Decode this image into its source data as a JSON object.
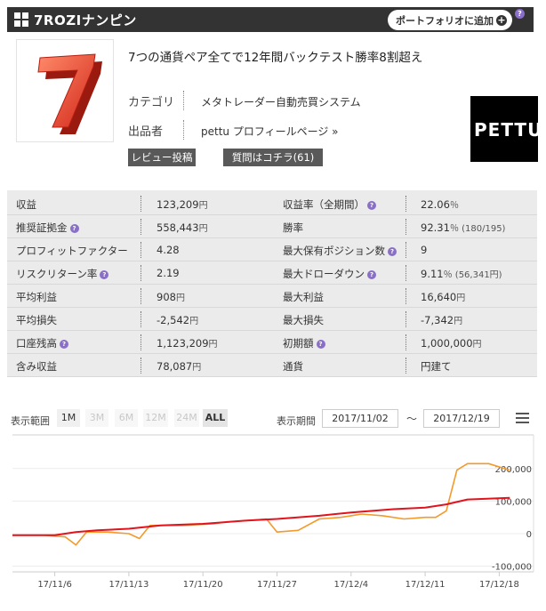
{
  "header": {
    "title": "7ROZIナンピン",
    "portfolio_button": "ポートフォリオに追加",
    "help": "?"
  },
  "product": {
    "logo_text": "7",
    "title": "7つの通貨ペア全てで12年間バックテスト勝率8割超え",
    "category_label": "カテゴリ",
    "category_value": "メタトレーダー自動売買システム",
    "seller_label": "出品者",
    "seller_value": "pettu プロフィールページ »",
    "review_button": "レビュー投稿",
    "question_button": "質問はコチラ(61)",
    "seller_logo_text": "PETTU"
  },
  "stats": [
    {
      "label1": "収益",
      "help1": false,
      "value1": "123,209",
      "unit1": "円",
      "label2": "収益率（全期間）",
      "help2": true,
      "value2": "22.06",
      "unit2": "％"
    },
    {
      "label1": "推奨証拠金",
      "help1": true,
      "value1": "558,443",
      "unit1": "円",
      "label2": "勝率",
      "help2": false,
      "value2": "92.31",
      "unit2": "％ (180/195)"
    },
    {
      "label1": "プロフィットファクター",
      "help1": false,
      "value1": "4.28",
      "unit1": "",
      "label2": "最大保有ポジション数",
      "help2": true,
      "value2": "9",
      "unit2": ""
    },
    {
      "label1": "リスクリターン率",
      "help1": true,
      "value1": "2.19",
      "unit1": "",
      "label2": "最大ドローダウン",
      "help2": true,
      "value2": "9.11",
      "unit2": "％ (56,341円)"
    },
    {
      "label1": "平均利益",
      "help1": false,
      "value1": "908",
      "unit1": "円",
      "label2": "最大利益",
      "help2": false,
      "value2": "16,640",
      "unit2": "円"
    },
    {
      "label1": "平均損失",
      "help1": false,
      "value1": "-2,542",
      "unit1": "円",
      "label2": "最大損失",
      "help2": false,
      "value2": "-7,342",
      "unit2": "円"
    },
    {
      "label1": "口座残高",
      "help1": true,
      "value1": "1,123,209",
      "unit1": "円",
      "label2": "初期額",
      "help2": true,
      "value2": "1,000,000",
      "unit2": "円"
    },
    {
      "label1": "含み収益",
      "help1": false,
      "value1": "78,087",
      "unit1": "円",
      "label2": "通貨",
      "help2": false,
      "value2": "円建て",
      "unit2": ""
    }
  ],
  "range": {
    "label": "表示範囲",
    "buttons": [
      {
        "label": "1M",
        "state": "normal"
      },
      {
        "label": "3M",
        "state": "disabled"
      },
      {
        "label": "6M",
        "state": "disabled"
      },
      {
        "label": "12M",
        "state": "disabled"
      },
      {
        "label": "24M",
        "state": "disabled"
      },
      {
        "label": "ALL",
        "state": "active"
      }
    ],
    "period_label": "表示期間",
    "from": "2017/11/02",
    "tilde": "～",
    "to": "2017/12/19"
  },
  "chart_data": {
    "type": "line",
    "x_ticks": [
      "17/11/6",
      "17/11/13",
      "17/11/20",
      "17/11/27",
      "17/12/4",
      "17/12/11",
      "17/12/18"
    ],
    "y_ticks": [
      200000,
      100000,
      0,
      -100000
    ],
    "y_tick_labels": [
      "200,000",
      "100,000",
      "0",
      "-100,000"
    ],
    "ylim": [
      -130000,
      260000
    ],
    "x_start": "2017-11-02",
    "colors": {
      "profit": "#f39a2b",
      "trend": "#e1141e"
    },
    "series": [
      {
        "name": "",
        "key": "profit",
        "points": [
          [
            "2017-11-02",
            -5000
          ],
          [
            "2017-11-05",
            -5000
          ],
          [
            "2017-11-07",
            -10000
          ],
          [
            "2017-11-08",
            -35000
          ],
          [
            "2017-11-09",
            5000
          ],
          [
            "2017-11-11",
            5000
          ],
          [
            "2017-11-13",
            0
          ],
          [
            "2017-11-14",
            -15000
          ],
          [
            "2017-11-15",
            25000
          ],
          [
            "2017-11-18",
            25000
          ],
          [
            "2017-11-21",
            30000
          ],
          [
            "2017-11-22",
            35000
          ],
          [
            "2017-11-24",
            40000
          ],
          [
            "2017-11-26",
            45000
          ],
          [
            "2017-11-27",
            5000
          ],
          [
            "2017-11-29",
            10000
          ],
          [
            "2017-12-01",
            45000
          ],
          [
            "2017-12-03",
            50000
          ],
          [
            "2017-12-04",
            55000
          ],
          [
            "2017-12-05",
            60000
          ],
          [
            "2017-12-07",
            55000
          ],
          [
            "2017-12-09",
            45000
          ],
          [
            "2017-12-11",
            50000
          ],
          [
            "2017-12-12",
            50000
          ],
          [
            "2017-12-13",
            70000
          ],
          [
            "2017-12-14",
            195000
          ],
          [
            "2017-12-15",
            215000
          ],
          [
            "2017-12-17",
            215000
          ],
          [
            "2017-12-19",
            195000
          ]
        ]
      },
      {
        "name": "",
        "key": "trend",
        "points": [
          [
            "2017-11-02",
            -5000
          ],
          [
            "2017-11-06",
            -5000
          ],
          [
            "2017-11-08",
            5000
          ],
          [
            "2017-11-10",
            10000
          ],
          [
            "2017-11-13",
            15000
          ],
          [
            "2017-11-16",
            25000
          ],
          [
            "2017-11-20",
            30000
          ],
          [
            "2017-11-24",
            40000
          ],
          [
            "2017-11-27",
            45000
          ],
          [
            "2017-12-01",
            55000
          ],
          [
            "2017-12-04",
            65000
          ],
          [
            "2017-12-08",
            75000
          ],
          [
            "2017-12-11",
            80000
          ],
          [
            "2017-12-13",
            90000
          ],
          [
            "2017-12-15",
            105000
          ],
          [
            "2017-12-19",
            110000
          ]
        ]
      }
    ]
  }
}
